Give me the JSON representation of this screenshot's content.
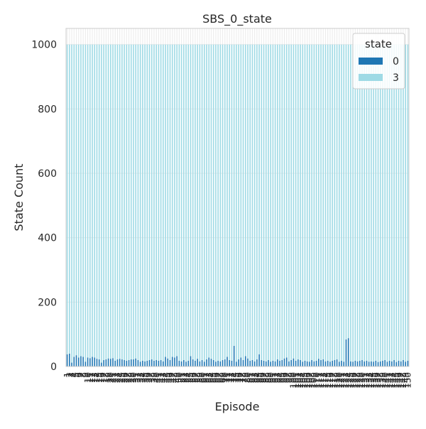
{
  "chart_data": {
    "type": "bar",
    "stacked": true,
    "title": "SBS_0_state",
    "xlabel": "Episode",
    "ylabel": "State Count",
    "legend_title": "state",
    "legend_position": "top-right",
    "grid": true,
    "ylim": [
      0,
      1050
    ],
    "yticks": [
      0,
      200,
      400,
      600,
      800,
      1000
    ],
    "categories": [
      "1",
      "2",
      "3",
      "4",
      "5",
      "6",
      "7",
      "8",
      "9",
      "10",
      "11",
      "12",
      "13",
      "14",
      "15",
      "16",
      "17",
      "18",
      "19",
      "20",
      "21",
      "22",
      "23",
      "24",
      "25",
      "26",
      "27",
      "28",
      "29",
      "30",
      "31",
      "32",
      "33",
      "34",
      "35",
      "36",
      "37",
      "38",
      "39",
      "40",
      "41",
      "42",
      "43",
      "44",
      "45",
      "46",
      "47",
      "48",
      "49",
      "50",
      "51",
      "52",
      "53",
      "54",
      "55",
      "56",
      "57",
      "58",
      "59",
      "60",
      "61",
      "62",
      "63",
      "64",
      "65",
      "66",
      "67",
      "68",
      "69",
      "70",
      "71",
      "72",
      "73",
      "74",
      "75",
      "76",
      "77",
      "78",
      "79",
      "80",
      "81",
      "82",
      "83",
      "84",
      "85",
      "86",
      "87",
      "88",
      "89",
      "90",
      "91",
      "92",
      "93",
      "94",
      "95",
      "96",
      "97",
      "98",
      "99",
      "100",
      "101",
      "102",
      "103",
      "104",
      "105",
      "106",
      "107",
      "108",
      "109",
      "110",
      "111",
      "112",
      "113",
      "114",
      "115",
      "116",
      "117",
      "118",
      "119",
      "120",
      "121",
      "122",
      "123",
      "124",
      "125",
      "126",
      "127",
      "128",
      "129",
      "130",
      "131",
      "132",
      "133",
      "134",
      "135",
      "136",
      "137",
      "138",
      "139",
      "140",
      "141",
      "142",
      "143",
      "144",
      "145",
      "146",
      "147",
      "148",
      "149",
      "150"
    ],
    "series": [
      {
        "name": "0",
        "color": "#1f77b4",
        "values": [
          38,
          40,
          12,
          30,
          35,
          28,
          32,
          30,
          15,
          28,
          26,
          30,
          28,
          24,
          22,
          12,
          20,
          22,
          25,
          24,
          26,
          18,
          22,
          24,
          22,
          20,
          18,
          20,
          22,
          22,
          25,
          20,
          15,
          18,
          16,
          18,
          20,
          22,
          18,
          20,
          18,
          20,
          16,
          30,
          25,
          20,
          30,
          28,
          32,
          18,
          16,
          20,
          15,
          18,
          32,
          22,
          18,
          24,
          16,
          20,
          15,
          22,
          28,
          24,
          20,
          15,
          18,
          16,
          20,
          22,
          30,
          20,
          18,
          64,
          15,
          22,
          28,
          20,
          32,
          25,
          18,
          20,
          16,
          22,
          38,
          20,
          18,
          16,
          20,
          15,
          18,
          16,
          22,
          18,
          20,
          25,
          28,
          16,
          20,
          25,
          18,
          22,
          20,
          15,
          18,
          16,
          15,
          20,
          16,
          18,
          24,
          20,
          22,
          16,
          18,
          15,
          18,
          20,
          22,
          15,
          18,
          15,
          84,
          88,
          16,
          15,
          18,
          16,
          18,
          20,
          16,
          18,
          15,
          16,
          15,
          18,
          14,
          16,
          18,
          20,
          15,
          18,
          16,
          20,
          14,
          18,
          16,
          20,
          15,
          18
        ]
      },
      {
        "name": "3",
        "color": "#9edae5",
        "values": [
          962,
          960,
          988,
          970,
          965,
          972,
          968,
          970,
          985,
          972,
          974,
          970,
          972,
          976,
          978,
          988,
          980,
          978,
          975,
          976,
          974,
          982,
          978,
          976,
          978,
          980,
          982,
          980,
          978,
          978,
          975,
          980,
          985,
          982,
          984,
          982,
          980,
          978,
          982,
          980,
          982,
          980,
          984,
          970,
          975,
          980,
          970,
          972,
          968,
          982,
          984,
          980,
          985,
          982,
          968,
          978,
          982,
          976,
          984,
          980,
          985,
          978,
          972,
          976,
          980,
          985,
          982,
          984,
          980,
          978,
          970,
          980,
          982,
          936,
          985,
          978,
          972,
          980,
          968,
          975,
          982,
          980,
          984,
          978,
          962,
          980,
          982,
          984,
          980,
          985,
          982,
          984,
          978,
          982,
          980,
          975,
          972,
          984,
          980,
          975,
          982,
          978,
          980,
          985,
          982,
          984,
          985,
          980,
          984,
          982,
          976,
          980,
          978,
          984,
          982,
          985,
          982,
          980,
          978,
          985,
          982,
          985,
          916,
          912,
          984,
          985,
          982,
          984,
          982,
          980,
          984,
          982,
          985,
          984,
          985,
          982,
          986,
          984,
          982,
          980,
          985,
          982,
          984,
          980,
          986,
          982,
          984,
          980,
          985,
          982
        ]
      }
    ]
  }
}
